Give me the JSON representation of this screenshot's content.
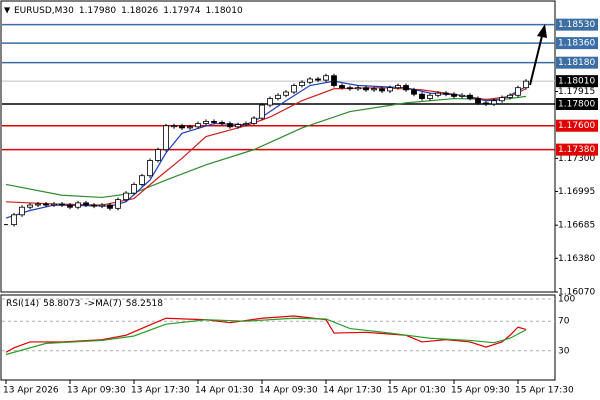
{
  "chart_data": [
    {
      "type": "candlestick",
      "title": "EURUSD,M30",
      "last_ohlc": [
        {
          "value": 1.1798,
          "label": "1.17980"
        },
        {
          "value": 1.18026,
          "label": "1.18026"
        },
        {
          "value": 1.17974,
          "label": "1.17974"
        },
        {
          "value": 1.1801,
          "label": "1.18010"
        }
      ],
      "categories": [
        "13 Apr 2026",
        null,
        null,
        null,
        null,
        null,
        null,
        null,
        "13 Apr 09:30",
        null,
        null,
        null,
        null,
        null,
        null,
        null,
        "13 Apr 17:30",
        null,
        null,
        null,
        null,
        null,
        null,
        null,
        "14 Apr 01:30",
        null,
        null,
        null,
        null,
        null,
        null,
        null,
        "14 Apr 09:30",
        null,
        null,
        null,
        null,
        null,
        null,
        null,
        "14 Apr 17:30",
        null,
        null,
        null,
        null,
        null,
        null,
        null,
        "15 Apr 01:30",
        null,
        null,
        null,
        null,
        null,
        null,
        null,
        "15 Apr 09:30",
        null,
        null,
        null,
        null,
        null,
        null,
        null,
        "15 Apr 17:30",
        null
      ],
      "close": [
        1.1669,
        1.1678,
        1.1685,
        1.1687,
        1.1688,
        1.1687,
        1.1688,
        1.1687,
        1.1685,
        1.1689,
        1.1687,
        1.1686,
        1.1687,
        1.1684,
        1.1692,
        1.1698,
        1.1706,
        1.1714,
        1.1728,
        1.1738,
        1.176,
        1.176,
        1.1758,
        1.1759,
        1.1762,
        1.1764,
        1.1763,
        1.1762,
        1.1759,
        1.1761,
        1.1762,
        1.1767,
        1.1779,
        1.1785,
        1.1788,
        1.1791,
        1.1797,
        1.18,
        1.1803,
        1.1802,
        1.1806,
        1.1797,
        1.1795,
        1.1794,
        1.1795,
        1.1793,
        1.1794,
        1.1792,
        1.1795,
        1.1797,
        1.1793,
        1.1789,
        1.1785,
        1.1788,
        1.179,
        1.1789,
        1.1787,
        1.1788,
        1.1785,
        1.1781,
        1.178,
        1.1783,
        1.1786,
        1.1788,
        1.1795,
        1.1801
      ],
      "series": [
        {
          "color": "#2e8b2e",
          "x": [
            0,
            7,
            12,
            16,
            20,
            25,
            31,
            37,
            43,
            50,
            56,
            62,
            65
          ],
          "values": [
            1.1706,
            1.1696,
            1.1694,
            1.1698,
            1.171,
            1.1724,
            1.1738,
            1.1758,
            1.1773,
            1.1781,
            1.1785,
            1.1784,
            1.1787
          ]
        },
        {
          "color": "#d02020",
          "x": [
            0,
            6,
            12,
            16,
            19,
            22,
            25,
            30,
            33,
            37,
            41,
            47,
            52,
            56,
            60,
            63,
            65
          ],
          "values": [
            1.169,
            1.1688,
            1.1687,
            1.1693,
            1.1712,
            1.173,
            1.175,
            1.176,
            1.1768,
            1.1783,
            1.1794,
            1.1795,
            1.1793,
            1.1789,
            1.1784,
            1.1787,
            1.1794
          ]
        },
        {
          "color": "#1f3fbf",
          "x": [
            0,
            3,
            6,
            13,
            15,
            18,
            20,
            22,
            26,
            30,
            32,
            35,
            38,
            41,
            44,
            50,
            53,
            57,
            60,
            62,
            65
          ],
          "values": [
            1.1675,
            1.1682,
            1.1687,
            1.1686,
            1.169,
            1.171,
            1.1735,
            1.1753,
            1.1762,
            1.1761,
            1.1768,
            1.1783,
            1.1797,
            1.1801,
            1.1797,
            1.1795,
            1.179,
            1.1788,
            1.1783,
            1.1784,
            1.1796
          ]
        }
      ],
      "ylim": [
        1.1607,
        1.1872
      ],
      "yticks": [
        {
          "value": 1.1607,
          "label": "1.16070"
        },
        {
          "value": 1.1638,
          "label": "1.16380"
        },
        {
          "value": 1.16685,
          "label": "1.16685"
        },
        {
          "value": 1.16995,
          "label": "1.16995"
        },
        {
          "value": 1.173,
          "label": "1.17300"
        },
        {
          "value": 1.17915,
          "label": "1.17915"
        }
      ],
      "levels": [
        {
          "value": 1.1853,
          "label": "1.18530",
          "color": "#3a6ea5"
        },
        {
          "value": 1.1836,
          "label": "1.18360",
          "color": "#3a6ea5"
        },
        {
          "value": 1.1818,
          "label": "1.18180",
          "color": "#3a6ea5"
        },
        {
          "value": 1.178,
          "label": "1.17800",
          "color": "#000000"
        },
        {
          "value": 1.176,
          "label": "1.17600",
          "color": "#e00000"
        },
        {
          "value": 1.1738,
          "label": "1.17380",
          "color": "#e00000"
        }
      ],
      "last_price": {
        "value": 1.1801,
        "label": "1.18010"
      }
    },
    {
      "type": "line",
      "title": "RSI(14)",
      "ma_title": "->MA(7)",
      "series": [
        {
          "color": "#e00000",
          "x": [
            0,
            1,
            3,
            7,
            12,
            15,
            18,
            20,
            25,
            28,
            32,
            36,
            40,
            41,
            45,
            50,
            52,
            55,
            58,
            60,
            62,
            63,
            64,
            65
          ],
          "values": [
            28,
            34,
            42,
            42,
            45,
            51,
            65,
            74,
            72,
            68,
            74,
            77,
            72,
            54,
            55,
            51,
            42,
            45,
            42,
            35,
            42,
            51,
            62,
            58.8073
          ]
        },
        {
          "color": "#2a9d2a",
          "x": [
            0,
            5,
            12,
            16,
            20,
            25,
            30,
            36,
            40,
            43,
            48,
            53,
            58,
            61,
            63,
            65
          ],
          "values": [
            25,
            40,
            44,
            50,
            66,
            72,
            70,
            74,
            73,
            60,
            54,
            47,
            44,
            41,
            47,
            58.2518
          ]
        }
      ],
      "ylim": [
        0,
        100
      ],
      "yticks": [
        100,
        70,
        30
      ],
      "grid": true
    }
  ]
}
